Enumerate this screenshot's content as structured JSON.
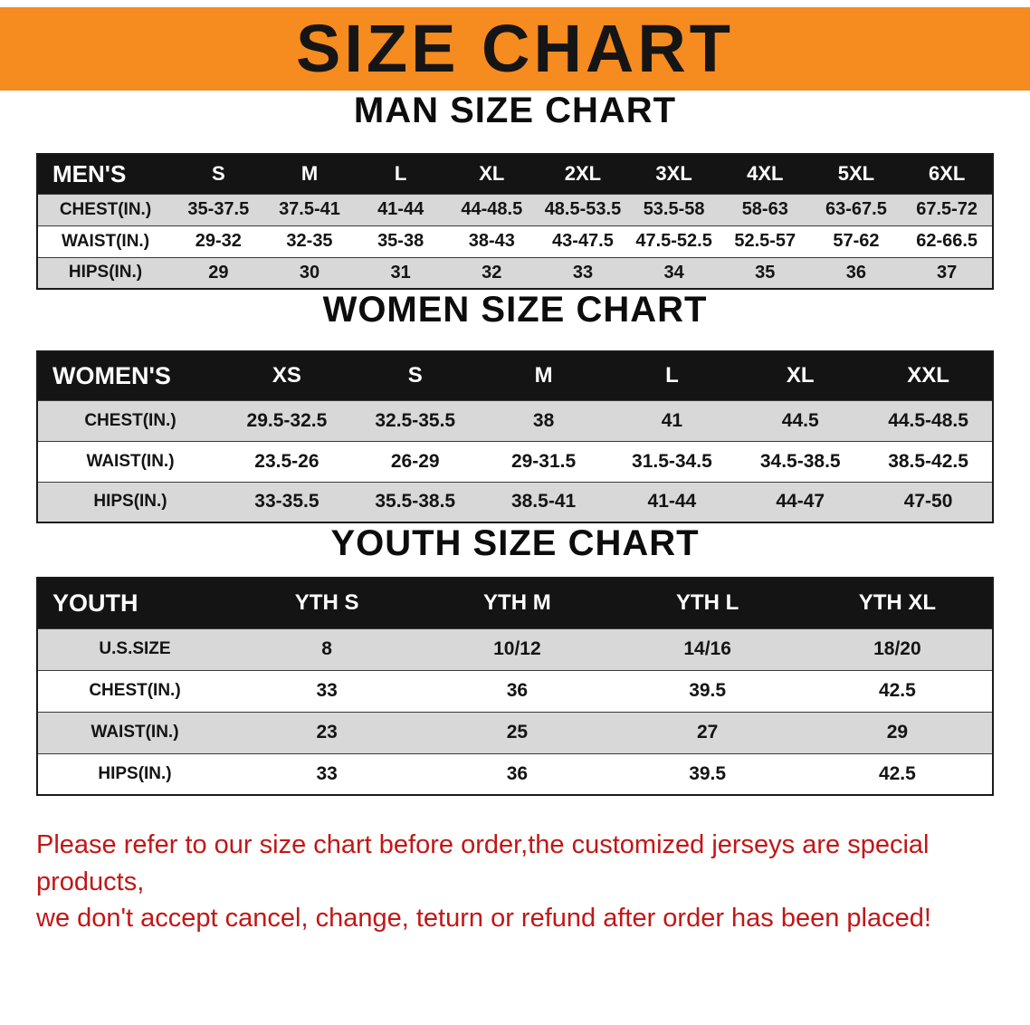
{
  "banner": {
    "title": "SIZE CHART"
  },
  "colors": {
    "banner_bg": "#f68b1f",
    "table_header_bg": "#141414",
    "table_header_text": "#ffffff",
    "row_shade": "#d8d8d8",
    "note_text": "#c21717"
  },
  "sections": [
    {
      "heading": "MAN SIZE CHART",
      "table": {
        "header": [
          "MEN'S",
          "S",
          "M",
          "L",
          "XL",
          "2XL",
          "3XL",
          "4XL",
          "5XL",
          "6XL"
        ],
        "rows": [
          [
            "CHEST(IN.)",
            "35-37.5",
            "37.5-41",
            "41-44",
            "44-48.5",
            "48.5-53.5",
            "53.5-58",
            "58-63",
            "63-67.5",
            "67.5-72"
          ],
          [
            "WAIST(IN.)",
            "29-32",
            "32-35",
            "35-38",
            "38-43",
            "43-47.5",
            "47.5-52.5",
            "52.5-57",
            "57-62",
            "62-66.5"
          ],
          [
            "HIPS(IN.)",
            "29",
            "30",
            "31",
            "32",
            "33",
            "34",
            "35",
            "36",
            "37"
          ]
        ]
      }
    },
    {
      "heading": "WOMEN SIZE CHART",
      "table": {
        "header": [
          "WOMEN'S",
          "XS",
          "S",
          "M",
          "L",
          "XL",
          "XXL"
        ],
        "rows": [
          [
            "CHEST(IN.)",
            "29.5-32.5",
            "32.5-35.5",
            "38",
            "41",
            "44.5",
            "44.5-48.5"
          ],
          [
            "WAIST(IN.)",
            "23.5-26",
            "26-29",
            "29-31.5",
            "31.5-34.5",
            "34.5-38.5",
            "38.5-42.5"
          ],
          [
            "HIPS(IN.)",
            "33-35.5",
            "35.5-38.5",
            "38.5-41",
            "41-44",
            "44-47",
            "47-50"
          ]
        ]
      }
    },
    {
      "heading": "YOUTH SIZE CHART",
      "table": {
        "header": [
          "YOUTH",
          "YTH S",
          "YTH M",
          "YTH L",
          "YTH XL"
        ],
        "rows": [
          [
            "U.S.SIZE",
            "8",
            "10/12",
            "14/16",
            "18/20"
          ],
          [
            "CHEST(IN.)",
            "33",
            "36",
            "39.5",
            "42.5"
          ],
          [
            "WAIST(IN.)",
            "23",
            "25",
            "27",
            "29"
          ],
          [
            "HIPS(IN.)",
            "33",
            "36",
            "39.5",
            "42.5"
          ]
        ]
      }
    }
  ],
  "note": {
    "lines": [
      "Please refer to our size chart before order,the customized jerseys are special products,",
      "we don't accept cancel, change, teturn or refund after order has been placed!"
    ]
  }
}
